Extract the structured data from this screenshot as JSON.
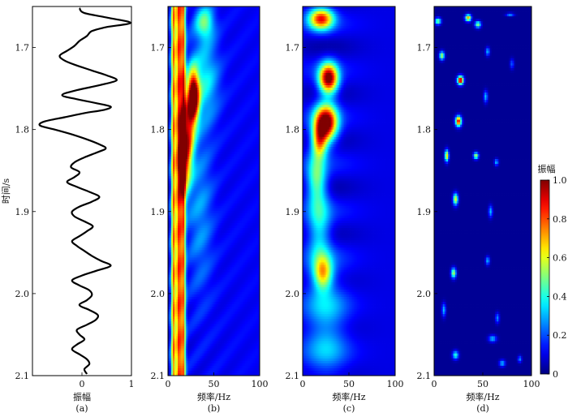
{
  "chart_data": [
    {
      "type": "line",
      "panel": "(a)",
      "xlabel": "振幅",
      "ylabel": "时间/s",
      "xlim": [
        -1,
        1
      ],
      "xticks": [
        "0",
        "1"
      ],
      "ylim": [
        1.65,
        2.1
      ],
      "yticks": [
        "1.7",
        "1.8",
        "1.9",
        "2.0",
        "2.1"
      ],
      "trace": {
        "t": [
          1.652,
          1.658,
          1.664,
          1.67,
          1.675,
          1.68,
          1.686,
          1.692,
          1.698,
          1.704,
          1.71,
          1.716,
          1.722,
          1.728,
          1.734,
          1.74,
          1.746,
          1.752,
          1.758,
          1.763,
          1.768,
          1.772,
          1.776,
          1.78,
          1.785,
          1.79,
          1.795,
          1.8,
          1.806,
          1.812,
          1.818,
          1.823,
          1.828,
          1.834,
          1.84,
          1.846,
          1.852,
          1.858,
          1.864,
          1.87,
          1.876,
          1.882,
          1.888,
          1.894,
          1.9,
          1.906,
          1.912,
          1.918,
          1.924,
          1.93,
          1.936,
          1.942,
          1.948,
          1.954,
          1.96,
          1.966,
          1.972,
          1.978,
          1.984,
          1.99,
          1.996,
          2.002,
          2.008,
          2.014,
          2.02,
          2.026,
          2.032,
          2.038,
          2.044,
          2.05,
          2.056,
          2.062,
          2.068,
          2.074,
          2.08,
          2.086,
          2.092,
          2.098
        ],
        "amp": [
          -0.05,
          0.05,
          0.55,
          0.98,
          0.5,
          0.2,
          0.1,
          -0.05,
          -0.15,
          -0.3,
          -0.45,
          -0.35,
          -0.1,
          0.2,
          0.5,
          0.7,
          0.35,
          -0.1,
          -0.4,
          -0.1,
          0.3,
          0.58,
          0.45,
          0.05,
          -0.35,
          -0.75,
          -0.85,
          -0.55,
          -0.2,
          0.1,
          0.35,
          0.48,
          0.3,
          0.05,
          -0.15,
          -0.22,
          -0.05,
          -0.15,
          -0.3,
          -0.1,
          0.15,
          0.35,
          0.2,
          -0.05,
          -0.2,
          -0.15,
          0.05,
          0.22,
          0.1,
          -0.05,
          -0.2,
          -0.1,
          0.05,
          0.2,
          0.38,
          0.58,
          0.3,
          0.0,
          -0.2,
          -0.05,
          0.15,
          0.2,
          0.1,
          -0.05,
          0.15,
          0.32,
          0.28,
          0.1,
          -0.1,
          -0.05,
          0.05,
          -0.1,
          -0.2,
          -0.05,
          0.1,
          0.15,
          0.05,
          0.1
        ]
      }
    },
    {
      "type": "heatmap",
      "panel": "(b)",
      "xlabel": "频率/Hz",
      "xlim": [
        0,
        100
      ],
      "xticks": [
        "0",
        "50",
        "100"
      ],
      "ylim": [
        1.65,
        2.1
      ],
      "yticks": [
        "1.7",
        "1.8",
        "1.9",
        "2.0",
        "2.1"
      ],
      "blobs": [
        {
          "f": 28,
          "t": 1.76,
          "df": 6,
          "dt": 0.03,
          "a": 0.95
        },
        {
          "f": 22,
          "t": 1.8,
          "df": 7,
          "dt": 0.05,
          "a": 0.6
        },
        {
          "f": 18,
          "t": 1.84,
          "df": 6,
          "dt": 0.04,
          "a": 0.5
        },
        {
          "f": 40,
          "t": 1.67,
          "df": 10,
          "dt": 0.02,
          "a": 0.35
        },
        {
          "f": 40,
          "t": 1.74,
          "df": 15,
          "dt": 0.05,
          "a": 0.25
        },
        {
          "f": 35,
          "t": 1.9,
          "df": 14,
          "dt": 0.1,
          "a": 0.15
        }
      ],
      "vertical_bands": [
        {
          "f": 6,
          "w": 2.5,
          "a": 0.6
        },
        {
          "f": 12,
          "w": 3.5,
          "a": 0.7
        },
        {
          "f": 17,
          "w": 2.5,
          "a": 0.55
        }
      ]
    },
    {
      "type": "heatmap",
      "panel": "(c)",
      "xlabel": "频率/Hz",
      "xlim": [
        0,
        100
      ],
      "xticks": [
        "0",
        "50",
        "100"
      ],
      "ylim": [
        1.65,
        2.1
      ],
      "yticks": [
        "1.7",
        "1.8",
        "1.9",
        "2.0",
        "2.1"
      ],
      "blobs": [
        {
          "f": 20,
          "t": 1.665,
          "df": 13,
          "dt": 0.013,
          "a": 0.75
        },
        {
          "f": 28,
          "t": 1.738,
          "df": 10,
          "dt": 0.018,
          "a": 0.95
        },
        {
          "f": 25,
          "t": 1.792,
          "df": 12,
          "dt": 0.022,
          "a": 1.0
        },
        {
          "f": 18,
          "t": 1.815,
          "df": 8,
          "dt": 0.02,
          "a": 0.55
        },
        {
          "f": 15,
          "t": 1.86,
          "df": 10,
          "dt": 0.03,
          "a": 0.35
        },
        {
          "f": 18,
          "t": 1.92,
          "df": 12,
          "dt": 0.05,
          "a": 0.28
        },
        {
          "f": 22,
          "t": 1.975,
          "df": 10,
          "dt": 0.02,
          "a": 0.5
        },
        {
          "f": 25,
          "t": 2.04,
          "df": 22,
          "dt": 0.07,
          "a": 0.22
        }
      ]
    },
    {
      "type": "heatmap",
      "panel": "(d)",
      "xlabel": "频率/Hz",
      "xlim": [
        0,
        100
      ],
      "xticks": [
        "0",
        "50",
        "100"
      ],
      "ylim": [
        1.65,
        2.1
      ],
      "yticks": [
        "1.7",
        "1.8",
        "1.9",
        "2.0",
        "2.1"
      ],
      "blobs": [
        {
          "f": 4,
          "t": 1.668,
          "df": 3,
          "dt": 0.004,
          "a": 0.5
        },
        {
          "f": 35,
          "t": 1.664,
          "df": 3,
          "dt": 0.004,
          "a": 0.7
        },
        {
          "f": 45,
          "t": 1.672,
          "df": 3,
          "dt": 0.004,
          "a": 0.5
        },
        {
          "f": 78,
          "t": 1.66,
          "df": 4,
          "dt": 0.002,
          "a": 0.25
        },
        {
          "f": 8,
          "t": 1.71,
          "df": 2.5,
          "dt": 0.005,
          "a": 0.55
        },
        {
          "f": 27,
          "t": 1.74,
          "df": 3,
          "dt": 0.005,
          "a": 1.0
        },
        {
          "f": 55,
          "t": 1.705,
          "df": 2,
          "dt": 0.005,
          "a": 0.3
        },
        {
          "f": 53,
          "t": 1.76,
          "df": 2,
          "dt": 0.007,
          "a": 0.3
        },
        {
          "f": 25,
          "t": 1.79,
          "df": 3,
          "dt": 0.006,
          "a": 0.9
        },
        {
          "f": 13,
          "t": 1.832,
          "df": 2,
          "dt": 0.007,
          "a": 0.65
        },
        {
          "f": 43,
          "t": 1.832,
          "df": 2.5,
          "dt": 0.004,
          "a": 0.55
        },
        {
          "f": 64,
          "t": 1.84,
          "df": 2,
          "dt": 0.004,
          "a": 0.3
        },
        {
          "f": 22,
          "t": 1.885,
          "df": 2.5,
          "dt": 0.007,
          "a": 0.6
        },
        {
          "f": 58,
          "t": 1.9,
          "df": 2,
          "dt": 0.007,
          "a": 0.3
        },
        {
          "f": 20,
          "t": 1.975,
          "df": 2.5,
          "dt": 0.006,
          "a": 0.55
        },
        {
          "f": 55,
          "t": 1.96,
          "df": 2,
          "dt": 0.005,
          "a": 0.3
        },
        {
          "f": 10,
          "t": 2.02,
          "df": 2,
          "dt": 0.008,
          "a": 0.3
        },
        {
          "f": 65,
          "t": 2.03,
          "df": 2,
          "dt": 0.006,
          "a": 0.25
        },
        {
          "f": 60,
          "t": 2.055,
          "df": 4,
          "dt": 0.004,
          "a": 0.3
        },
        {
          "f": 22,
          "t": 2.075,
          "df": 3,
          "dt": 0.005,
          "a": 0.4
        },
        {
          "f": 70,
          "t": 2.085,
          "df": 3,
          "dt": 0.004,
          "a": 0.3
        },
        {
          "f": 88,
          "t": 2.08,
          "df": 2,
          "dt": 0.004,
          "a": 0.25
        },
        {
          "f": 80,
          "t": 1.72,
          "df": 2,
          "dt": 0.006,
          "a": 0.2
        }
      ]
    }
  ],
  "colorbar": {
    "label": "振幅",
    "ticks": [
      "0",
      "0.2",
      "0.4",
      "0.6",
      "0.8",
      "1.0"
    ],
    "values": [
      0,
      0.2,
      0.4,
      0.6,
      0.8,
      1.0
    ]
  },
  "colors": {
    "jet": [
      "#00008f",
      "#0000ff",
      "#00ffff",
      "#ffff00",
      "#ff0000",
      "#800000"
    ],
    "background": "#00108f"
  }
}
